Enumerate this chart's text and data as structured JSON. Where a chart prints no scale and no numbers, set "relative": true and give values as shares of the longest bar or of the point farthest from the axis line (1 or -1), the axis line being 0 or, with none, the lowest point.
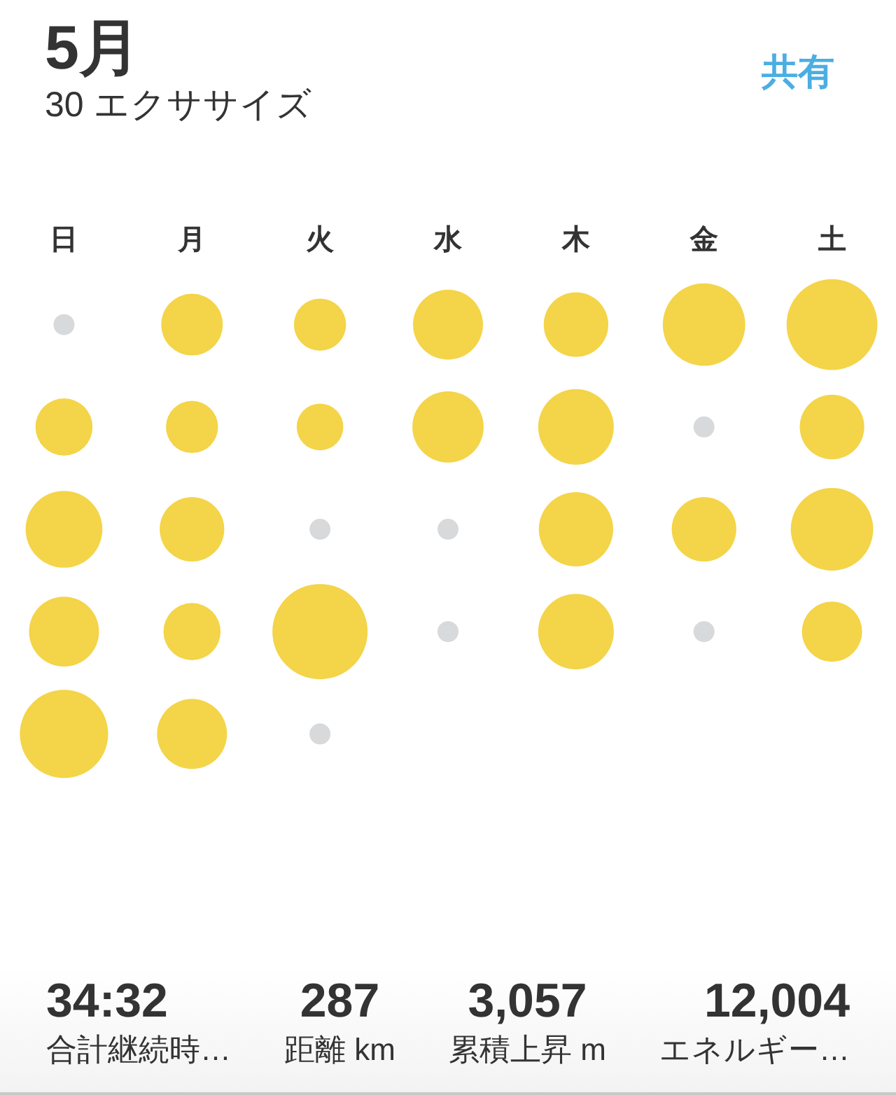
{
  "chart_data": [
    {
      "type": "bubble",
      "title": "5月",
      "subtitle": "30 エクササイズ",
      "annotations": [
        "共有"
      ],
      "categories": [
        "日",
        "月",
        "火",
        "水",
        "木",
        "金",
        "土"
      ],
      "relative": true,
      "marker": "circle",
      "grid": false,
      "legend": false,
      "series": [
        {
          "color": "#f4d448",
          "x": [
            "月",
            "火",
            "水",
            "木",
            "金",
            "土",
            "日",
            "月",
            "火",
            "水",
            "木",
            "土",
            "日",
            "月",
            "木",
            "金",
            "土",
            "日",
            "月",
            "火",
            "木",
            "土",
            "日",
            "月"
          ],
          "values": [
            1,
            1,
            1,
            1,
            1,
            1,
            0.75,
            0.75,
            0.75,
            0.75,
            0.75,
            0.75,
            0.5,
            0.5,
            0.5,
            0.5,
            0.5,
            0.25,
            0.25,
            0.25,
            0.25,
            0.25,
            0,
            0
          ],
          "sizes": [
            0.42,
            0.3,
            0.54,
            0.46,
            0.75,
            0.91,
            0.36,
            0.3,
            0.24,
            0.56,
            0.63,
            0.46,
            0.65,
            0.46,
            0.61,
            0.46,
            0.75,
            0.54,
            0.36,
            1,
            0.63,
            0.4,
            0.86,
            0.54
          ]
        },
        {
          "type": "scatter",
          "color": "#d8d9db",
          "x": [
            "日",
            "金",
            "火",
            "水",
            "水",
            "金",
            "火"
          ],
          "values": [
            1,
            0.75,
            0.5,
            0.5,
            0.25,
            0.25,
            0
          ]
        }
      ]
    },
    {
      "type": "other",
      "annotations": [
        "34:32",
        "合計継続時…",
        "287",
        "距離 km",
        "3,057",
        "累積上昇 m",
        "12,004",
        "エネルギー…"
      ]
    }
  ]
}
